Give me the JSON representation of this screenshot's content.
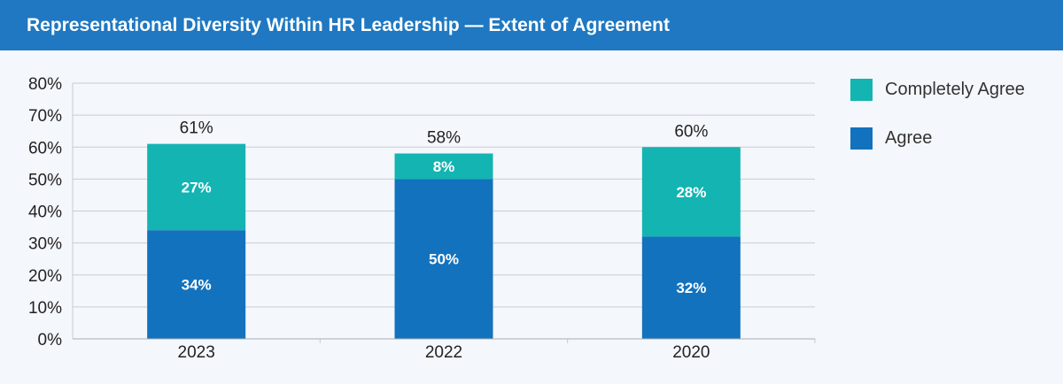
{
  "header": {
    "title": "Representational Diversity Within HR Leadership — Extent of Agreement"
  },
  "colors": {
    "header_bg": "#1f78c1",
    "agree": "#1272bd",
    "completely_agree": "#13b4b2",
    "grid": "#c9cdd2",
    "text": "#222222"
  },
  "chart_data": {
    "type": "bar",
    "stacked": true,
    "title": "Representational Diversity Within HR Leadership — Extent of Agreement",
    "categories": [
      "2023",
      "2022",
      "2020"
    ],
    "series": [
      {
        "name": "Agree",
        "values": [
          34,
          50,
          32
        ],
        "labels": [
          "34%",
          "50%",
          "32%"
        ],
        "color": "#1272bd"
      },
      {
        "name": "Completely Agree",
        "values": [
          27,
          8,
          28
        ],
        "labels": [
          "27%",
          "8%",
          "28%"
        ],
        "color": "#13b4b2"
      }
    ],
    "totals": [
      61,
      58,
      60
    ],
    "total_labels": [
      "61%",
      "58%",
      "60%"
    ],
    "ylim": [
      0,
      80
    ],
    "yticks": [
      0,
      10,
      20,
      30,
      40,
      50,
      60,
      70,
      80
    ],
    "ytick_labels": [
      "0%",
      "10%",
      "20%",
      "30%",
      "40%",
      "50%",
      "60%",
      "70%",
      "80%"
    ],
    "grid": true,
    "legend": {
      "position": "right",
      "items": [
        {
          "name": "Completely Agree",
          "color": "#13b4b2"
        },
        {
          "name": "Agree",
          "color": "#1272bd"
        }
      ]
    }
  }
}
